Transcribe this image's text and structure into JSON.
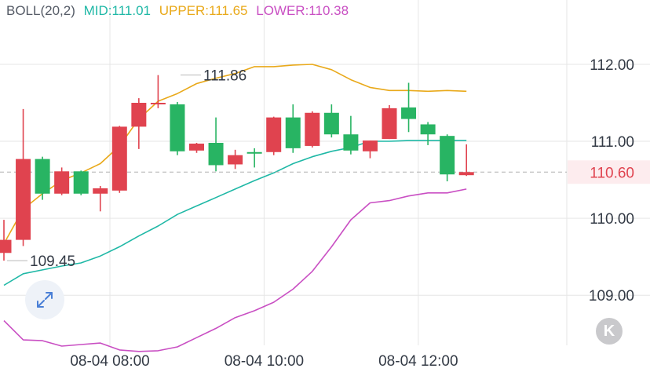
{
  "legend": {
    "indicator": "BOLL(20,2)",
    "mid_label": "MID:111.01",
    "upper_label": "UPPER:111.65",
    "lower_label": "LOWER:110.38"
  },
  "colors": {
    "up": "#e0434f",
    "down": "#28b463",
    "mid": "#1fb8a6",
    "upper": "#e9a91a",
    "lower": "#c94fc3",
    "grid": "#e6e6e6",
    "axis_text": "#333a45",
    "price_line": "#b0b0b0",
    "price_tag_bg": "#fdecee",
    "price_tag_text": "#e0434f"
  },
  "controls": {
    "expand_icon": "expand-arrows-icon",
    "k_icon": "k-line-icon",
    "k_label": "K"
  },
  "chart_data": {
    "type": "candlestick",
    "y_ticks": [
      "112.00",
      "111.00",
      "110.00",
      "109.00"
    ],
    "y_tick_values": [
      112.0,
      111.0,
      110.0,
      109.0
    ],
    "ylim": [
      108.35,
      112.55
    ],
    "x_ticks": [
      "08-04 08:00",
      "08-04 10:00",
      "08-04 12:00"
    ],
    "x_tick_index": [
      5.5,
      13.5,
      21.5
    ],
    "current_price": 110.6,
    "current_price_label": "110.60",
    "annotations": [
      {
        "text": "111.86",
        "candle": 9,
        "value": 111.86
      },
      {
        "text": "109.45",
        "candle": 0,
        "value": 109.45
      }
    ],
    "candles": [
      {
        "open": 109.55,
        "high": 109.98,
        "low": 109.45,
        "close": 109.72
      },
      {
        "open": 109.72,
        "high": 111.42,
        "low": 109.64,
        "close": 110.77
      },
      {
        "open": 110.77,
        "high": 110.8,
        "low": 110.24,
        "close": 110.32
      },
      {
        "open": 110.32,
        "high": 110.66,
        "low": 110.3,
        "close": 110.61
      },
      {
        "open": 110.61,
        "high": 110.62,
        "low": 110.3,
        "close": 110.32
      },
      {
        "open": 110.32,
        "high": 110.42,
        "low": 110.09,
        "close": 110.39
      },
      {
        "open": 110.36,
        "high": 111.2,
        "low": 110.33,
        "close": 111.19
      },
      {
        "open": 111.19,
        "high": 111.56,
        "low": 110.9,
        "close": 111.5
      },
      {
        "open": 111.49,
        "high": 111.86,
        "low": 111.43,
        "close": 111.5
      },
      {
        "open": 111.48,
        "high": 111.51,
        "low": 110.82,
        "close": 110.87
      },
      {
        "open": 110.88,
        "high": 110.98,
        "low": 110.85,
        "close": 110.97
      },
      {
        "open": 110.98,
        "high": 111.31,
        "low": 110.61,
        "close": 110.69
      },
      {
        "open": 110.7,
        "high": 110.89,
        "low": 110.64,
        "close": 110.82
      },
      {
        "open": 110.86,
        "high": 110.91,
        "low": 110.66,
        "close": 110.85
      },
      {
        "open": 110.86,
        "high": 111.32,
        "low": 110.82,
        "close": 111.31
      },
      {
        "open": 111.31,
        "high": 111.48,
        "low": 110.85,
        "close": 110.91
      },
      {
        "open": 110.94,
        "high": 111.39,
        "low": 110.92,
        "close": 111.37
      },
      {
        "open": 111.37,
        "high": 111.48,
        "low": 111.05,
        "close": 111.09
      },
      {
        "open": 111.09,
        "high": 111.33,
        "low": 110.83,
        "close": 110.88
      },
      {
        "open": 110.87,
        "high": 111.01,
        "low": 110.78,
        "close": 111.01
      },
      {
        "open": 111.03,
        "high": 111.47,
        "low": 111.03,
        "close": 111.43
      },
      {
        "open": 111.44,
        "high": 111.76,
        "low": 111.12,
        "close": 111.29
      },
      {
        "open": 111.22,
        "high": 111.25,
        "low": 110.95,
        "close": 111.09
      },
      {
        "open": 111.07,
        "high": 111.09,
        "low": 110.48,
        "close": 110.57
      },
      {
        "open": 110.56,
        "high": 110.96,
        "low": 110.55,
        "close": 110.6
      }
    ],
    "series": [
      {
        "name": "UPPER",
        "values": [
          109.67,
          110.12,
          110.32,
          110.49,
          110.59,
          110.71,
          110.94,
          111.29,
          111.52,
          111.62,
          111.75,
          111.82,
          111.88,
          111.97,
          111.97,
          111.99,
          112.0,
          111.93,
          111.8,
          111.7,
          111.66,
          111.66,
          111.65,
          111.66,
          111.65
        ]
      },
      {
        "name": "MID",
        "values": [
          109.13,
          109.28,
          109.33,
          109.38,
          109.42,
          109.51,
          109.63,
          109.77,
          109.9,
          110.05,
          110.16,
          110.27,
          110.38,
          110.49,
          110.59,
          110.71,
          110.8,
          110.87,
          110.92,
          111.0,
          111.0,
          111.01,
          111.01,
          111.01,
          111.01
        ]
      },
      {
        "name": "LOWER",
        "values": [
          108.67,
          108.42,
          108.41,
          108.34,
          108.36,
          108.38,
          108.29,
          108.27,
          108.28,
          108.33,
          108.45,
          108.57,
          108.71,
          108.8,
          108.91,
          109.08,
          109.31,
          109.63,
          109.98,
          110.2,
          110.23,
          110.29,
          110.33,
          110.33,
          110.38
        ]
      }
    ]
  }
}
